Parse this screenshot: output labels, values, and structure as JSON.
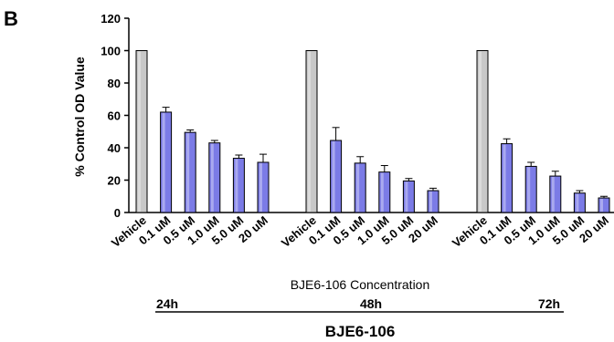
{
  "panel_letter": "B",
  "chart_data": {
    "type": "bar",
    "ylabel": "% Control OD Value",
    "xlabel": "BJE6-106 Concentration",
    "ylim": [
      0,
      120
    ],
    "yticks": [
      0,
      20,
      40,
      60,
      80,
      100,
      120
    ],
    "grid": false,
    "legend": "none",
    "groups": [
      {
        "label": "24h",
        "categories": [
          "Vehicle",
          "0.1 uM",
          "0.5 uM",
          "1.0 uM",
          "5.0 uM",
          "20 uM"
        ],
        "values": [
          100,
          62,
          49.5,
          43,
          33.5,
          31
        ],
        "errors": [
          0,
          3,
          1.5,
          1.5,
          2,
          5
        ]
      },
      {
        "label": "48h",
        "categories": [
          "Vehicle",
          "0.1 uM",
          "0.5 uM",
          "1.0 uM",
          "5.0 uM",
          "20 uM"
        ],
        "values": [
          100,
          44.5,
          30.5,
          25,
          19.5,
          13.5
        ],
        "errors": [
          0,
          8,
          4,
          4,
          1.5,
          1.5
        ]
      },
      {
        "label": "72h",
        "categories": [
          "Vehicle",
          "0.1 uM",
          "0.5 uM",
          "1.0 uM",
          "5.0 uM",
          "20 uM"
        ],
        "values": [
          100,
          42.5,
          28.5,
          22.5,
          12,
          9
        ],
        "errors": [
          0,
          3,
          2.5,
          3,
          1.5,
          1
        ]
      }
    ],
    "colors": {
      "vehicle": "#c8c8c8",
      "treatment": "#7b7be6",
      "outline": "#000000"
    }
  },
  "compound_label": "BJE6-106"
}
